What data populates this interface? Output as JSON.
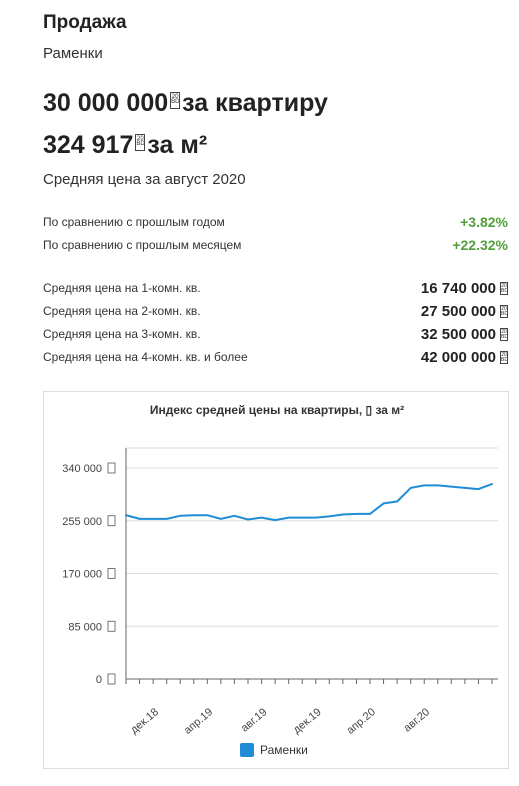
{
  "header": {
    "title": "Продажа",
    "district": "Раменки"
  },
  "prices": {
    "total": "30 000 000",
    "total_suffix": "за квартиру",
    "per_sqm": "324 917",
    "per_sqm_suffix": "за м²",
    "average_period": "Средняя цена за август 2020"
  },
  "comparison": [
    {
      "label": "По сравнению с прошлым годом",
      "value": "+3.82%"
    },
    {
      "label": "По сравнению с прошлым месяцем",
      "value": "+22.32%"
    }
  ],
  "room_prices": [
    {
      "label": "Средняя цена на 1-комн. кв.",
      "value": "16 740 000"
    },
    {
      "label": "Средняя цена на 2-комн. кв.",
      "value": "27 500 000"
    },
    {
      "label": "Средняя цена на 3-комн. кв.",
      "value": "32 500 000"
    },
    {
      "label": "Средняя цена на 4-комн. кв. и более",
      "value": "42 000 000"
    }
  ],
  "colors": {
    "series": "#1f8dd6",
    "positive": "#52a03a",
    "grid": "#dddddd",
    "axis": "#666666"
  },
  "chart_data": {
    "type": "line",
    "title_prefix": "Индекс средней цены на квартиры,",
    "title_suffix": "за м²",
    "ylim": [
      0,
      340000
    ],
    "y_ticks": [
      "340 000",
      "255 000",
      "170 000",
      "85 000",
      "0"
    ],
    "y_tick_values": [
      340000,
      255000,
      170000,
      85000,
      0
    ],
    "x_tick_labels": [
      "дек.18",
      "апр.19",
      "авг.19",
      "дек.19",
      "апр.20",
      "авг.20"
    ],
    "x_tick_index": [
      2,
      6,
      10,
      14,
      18,
      22
    ],
    "legend_position": "bottom-center",
    "grid": true,
    "series": [
      {
        "name": "Раменки",
        "values": [
          264000,
          258000,
          258000,
          258000,
          263000,
          264000,
          264000,
          258000,
          263000,
          257000,
          260000,
          256000,
          260000,
          260000,
          260000,
          262000,
          265000,
          266000,
          266000,
          283000,
          286000,
          308000,
          312000,
          312000,
          310000,
          308000,
          306000,
          314000
        ]
      }
    ]
  }
}
